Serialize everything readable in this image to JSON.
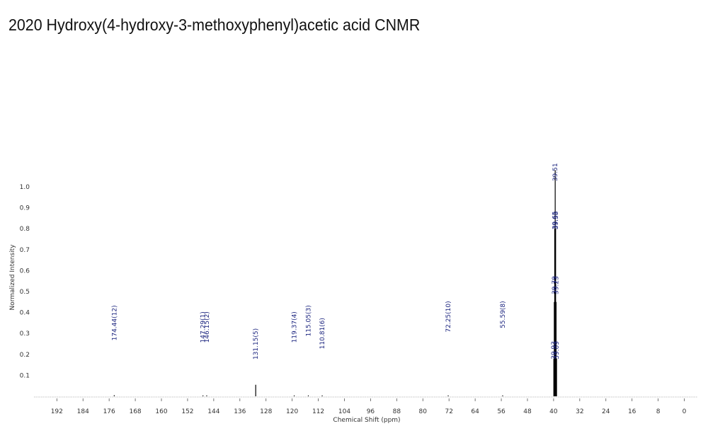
{
  "title": "2020 Hydroxy(4-hydroxy-3-methoxyphenyl)acetic acid CNMR",
  "chart_data": {
    "type": "line",
    "xlabel": "Chemical Shift (ppm)",
    "ylabel": "Normalized Intensity",
    "xlim": [
      199,
      -4
    ],
    "ylim": [
      0,
      1.0
    ],
    "x_reversed": true,
    "grid": false,
    "x_ticks": [
      192,
      184,
      176,
      168,
      160,
      152,
      144,
      136,
      128,
      120,
      112,
      104,
      96,
      88,
      80,
      72,
      64,
      56,
      48,
      40,
      32,
      24,
      16,
      8,
      0
    ],
    "y_ticks": [
      0.1,
      0.2,
      0.3,
      0.4,
      0.5,
      0.6,
      0.7,
      0.8,
      0.9,
      1.0
    ],
    "peaks": [
      {
        "x": 174.44,
        "y": 0.005
      },
      {
        "x": 147.29,
        "y": 0.004
      },
      {
        "x": 146.15,
        "y": 0.004
      },
      {
        "x": 131.15,
        "y": 0.055
      },
      {
        "x": 119.37,
        "y": 0.004
      },
      {
        "x": 115.05,
        "y": 0.004
      },
      {
        "x": 110.81,
        "y": 0.004
      },
      {
        "x": 72.25,
        "y": 0.004
      },
      {
        "x": 55.59,
        "y": 0.004
      },
      {
        "x": 39.93,
        "y": 0.18
      },
      {
        "x": 39.79,
        "y": 0.45
      },
      {
        "x": 39.65,
        "y": 0.8
      },
      {
        "x": 39.51,
        "y": 1.08
      },
      {
        "x": 39.38,
        "y": 0.8
      },
      {
        "x": 39.23,
        "y": 0.45
      },
      {
        "x": 39.09,
        "y": 0.18
      }
    ],
    "peak_labels": [
      {
        "text": "174.44(12)",
        "x": 174.44,
        "y": 0.35
      },
      {
        "text": "147.29(1)",
        "x": 147.29,
        "y": 0.33
      },
      {
        "text": "146.15(2)",
        "x": 146.15,
        "y": 0.33
      },
      {
        "text": "131.15(5)",
        "x": 131.15,
        "y": 0.25
      },
      {
        "text": "119.37(4)",
        "x": 119.37,
        "y": 0.33
      },
      {
        "text": "115.05(3)",
        "x": 115.05,
        "y": 0.36
      },
      {
        "text": "110.81(6)",
        "x": 110.81,
        "y": 0.3
      },
      {
        "text": "72.25(10)",
        "x": 72.25,
        "y": 0.38
      },
      {
        "text": "55.59(8)",
        "x": 55.59,
        "y": 0.39
      },
      {
        "text": "39.93",
        "x": 39.93,
        "y": 0.22
      },
      {
        "text": "39.09",
        "x": 39.09,
        "y": 0.22
      },
      {
        "text": "39.79",
        "x": 39.79,
        "y": 0.53
      },
      {
        "text": "39.23",
        "x": 39.23,
        "y": 0.53
      },
      {
        "text": "39.65",
        "x": 39.65,
        "y": 0.84
      },
      {
        "text": "39.38",
        "x": 39.38,
        "y": 0.84
      },
      {
        "text": "39.51",
        "x": 39.51,
        "y": 1.07
      }
    ]
  },
  "colors": {
    "spectrum": "#000000",
    "labels": "#1a237e",
    "axis_text": "#333333",
    "title": "#111111"
  }
}
